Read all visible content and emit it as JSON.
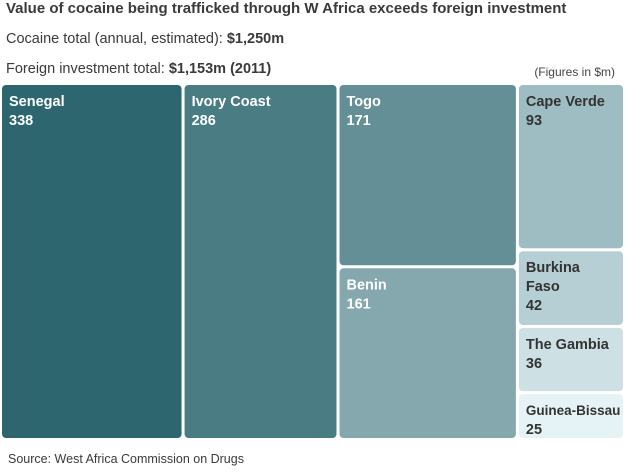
{
  "header": {
    "title": "Value of cocaine being trafficked through W Africa exceeds foreign investment",
    "cocaine_label": "Cocaine total (annual, estimated): ",
    "cocaine_value": "$1,250m",
    "investment_label": "Foreign investment total: ",
    "investment_value": "$1,153m (2011)",
    "units_note": "(Figures in $m)"
  },
  "footer": {
    "source": "Source: West Africa Commission on Drugs"
  },
  "chart_data": {
    "type": "treemap",
    "title": "Value of cocaine being trafficked through W Africa exceeds foreign investment",
    "units": "$m",
    "items": [
      {
        "name": [
          "Senegal"
        ],
        "value": 338,
        "color": "#2e6670",
        "text_color": "#ffffff"
      },
      {
        "name": [
          "Ivory Coast"
        ],
        "value": 286,
        "color": "#4a7c84",
        "text_color": "#ffffff"
      },
      {
        "name": [
          "Togo"
        ],
        "value": 171,
        "color": "#658f96",
        "text_color": "#ffffff"
      },
      {
        "name": [
          "Benin"
        ],
        "value": 161,
        "color": "#84a8ae",
        "text_color": "#ffffff"
      },
      {
        "name": [
          "Cape Verde"
        ],
        "value": 93,
        "color": "#9ebdc3",
        "text_color": "#333333"
      },
      {
        "name": [
          "Burkina",
          "Faso"
        ],
        "value": 42,
        "color": "#b5cfd4",
        "text_color": "#333333"
      },
      {
        "name": [
          "The Gambia"
        ],
        "value": 36,
        "color": "#cde0e4",
        "text_color": "#333333"
      },
      {
        "name": [
          "Guinea-Bissau"
        ],
        "value": 25,
        "color": "#e6f3f6",
        "text_color": "#333333"
      }
    ]
  }
}
